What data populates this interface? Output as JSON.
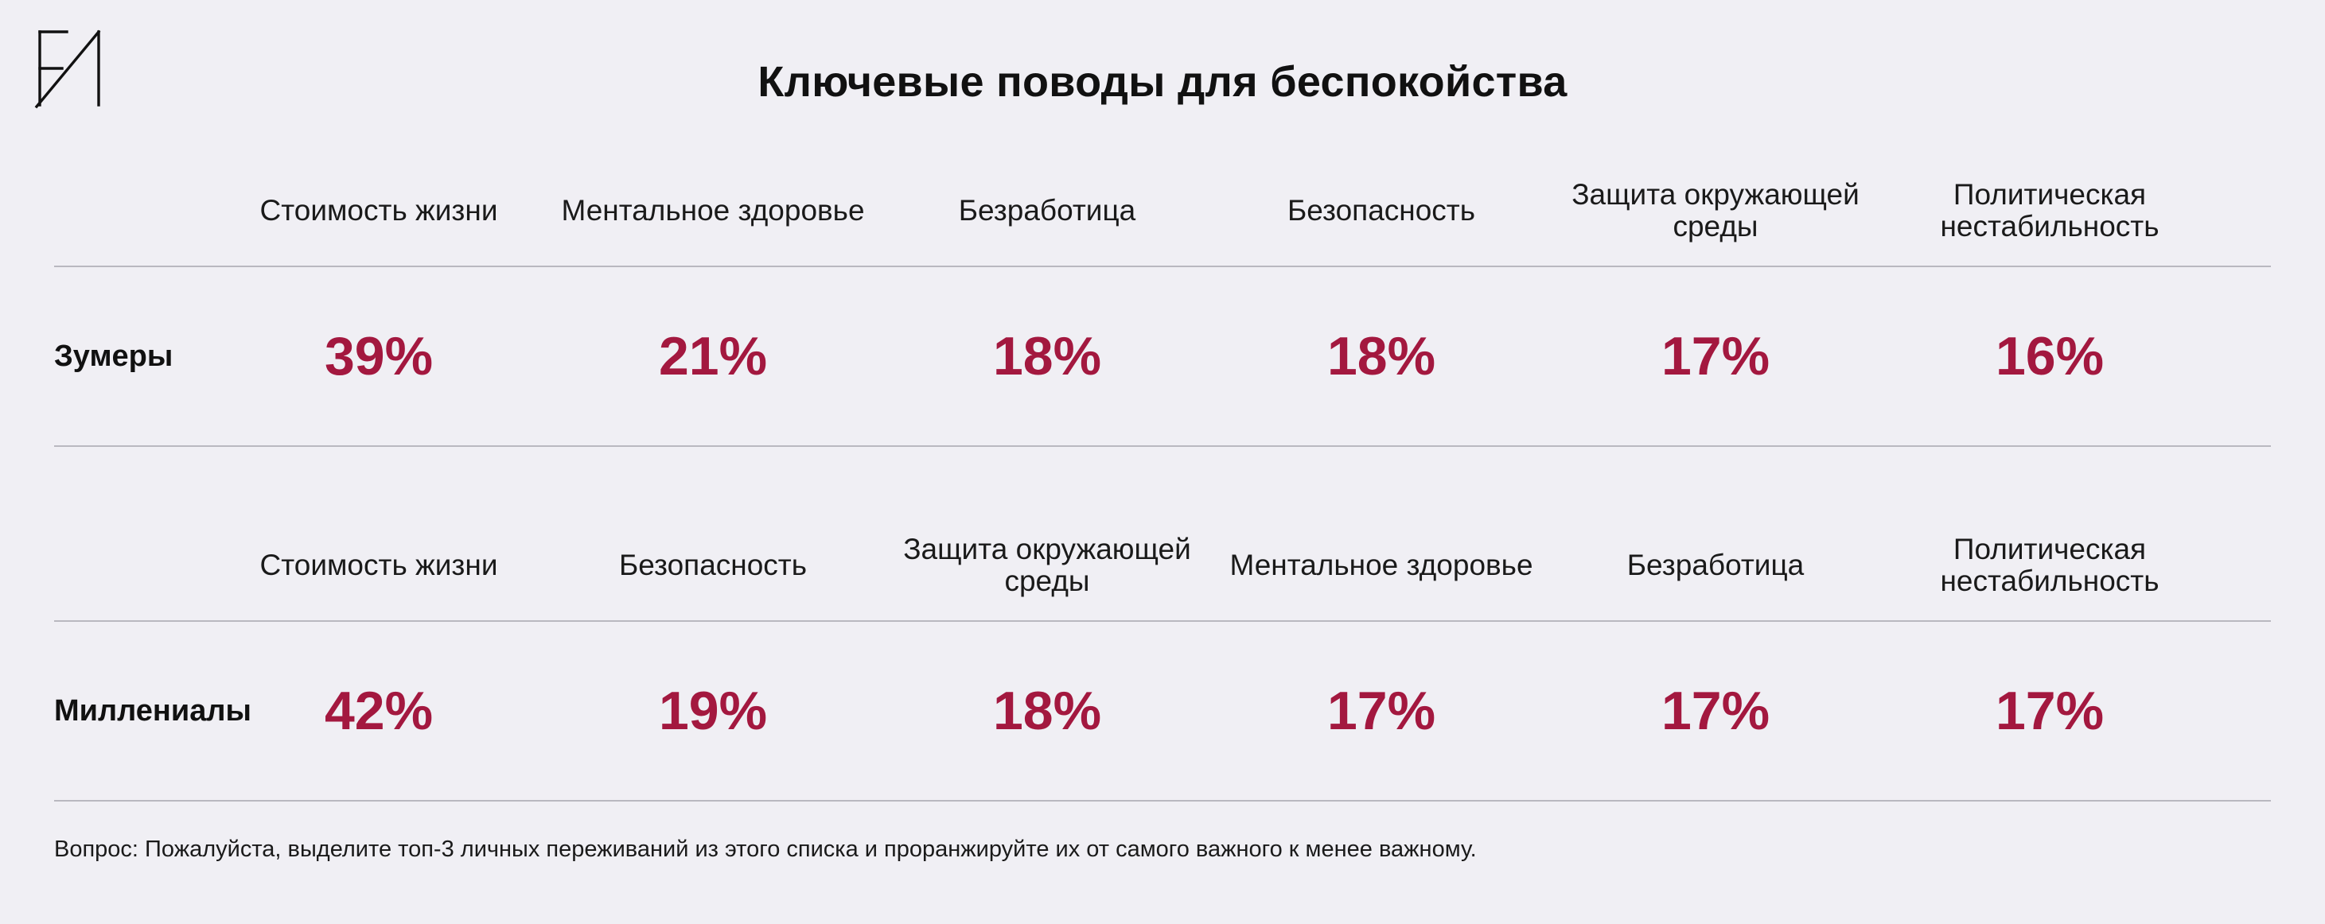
{
  "logo": {
    "icon": "monogram-logo-icon",
    "letters": "ЕИ"
  },
  "title": "Ключевые поводы для беспокойства",
  "colors": {
    "accent": "#a3183f",
    "background": "#f0eff4",
    "rule": "#b9b8c0"
  },
  "chart_data": {
    "type": "table",
    "title": "Ключевые поводы для беспокойства",
    "unit": "%",
    "groups": [
      {
        "name": "Зумеры",
        "categories": [
          "Стоимость жизни",
          "Ментальное здоровье",
          "Безработица",
          "Безопасность",
          "Защита окружающей среды",
          "Политическая нестабильность"
        ],
        "values": [
          39,
          21,
          18,
          18,
          17,
          16
        ],
        "labels": [
          "39%",
          "21%",
          "18%",
          "18%",
          "17%",
          "16%"
        ]
      },
      {
        "name": "Миллениалы",
        "categories": [
          "Стоимость жизни",
          "Безопасность",
          "Защита окружающей среды",
          "Ментальное здоровье",
          "Безработица",
          "Политическая нестабильность"
        ],
        "values": [
          42,
          19,
          18,
          17,
          17,
          17
        ],
        "labels": [
          "42%",
          "19%",
          "18%",
          "17%",
          "17%",
          "17%"
        ]
      }
    ]
  },
  "footnote": "Вопрос: Пожалуйста, выделите топ-3 личных переживаний из этого списка и проранжируйте их от самого важного к менее важному."
}
